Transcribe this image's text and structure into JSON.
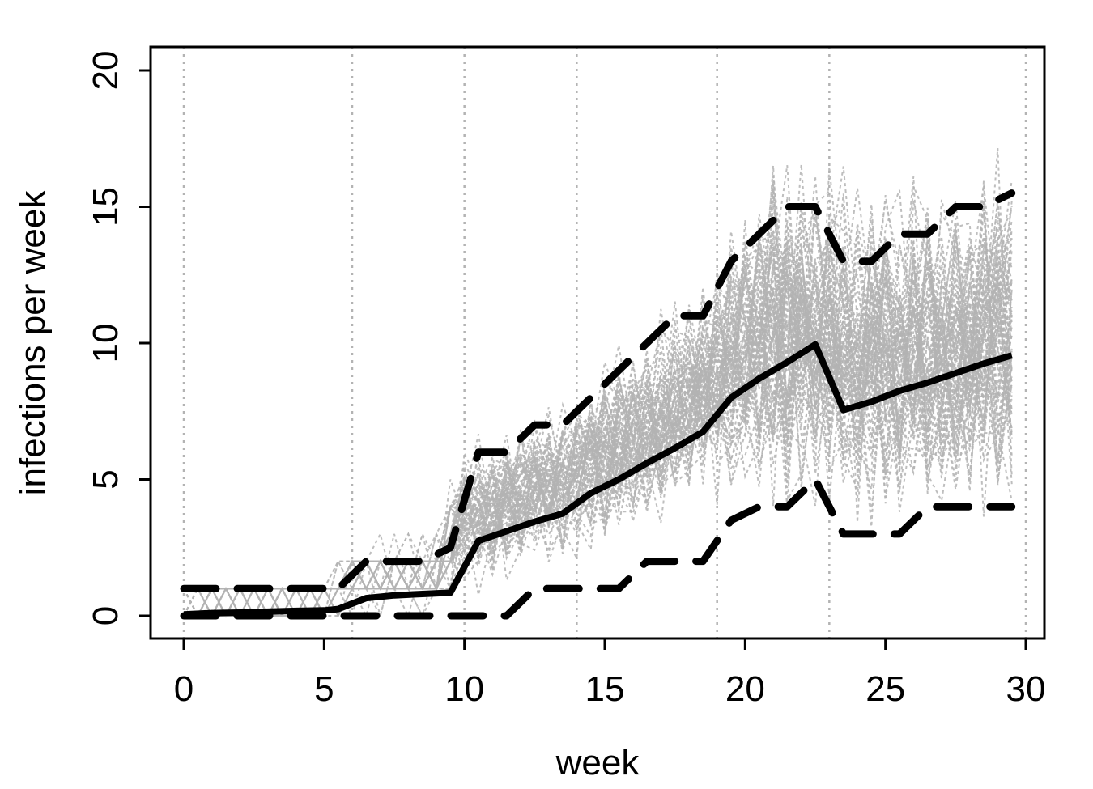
{
  "chart_data": {
    "type": "line",
    "title": "",
    "xlabel": "week",
    "ylabel": "infections per week",
    "xlim": [
      0,
      30
    ],
    "ylim": [
      0,
      20
    ],
    "x_ticks": [
      0,
      5,
      10,
      15,
      20,
      25,
      30
    ],
    "y_ticks": [
      0,
      5,
      10,
      15,
      20
    ],
    "x_tick_labels": [
      "0",
      "5",
      "10",
      "15",
      "20",
      "25",
      "30"
    ],
    "y_tick_labels": [
      "0",
      "5",
      "10",
      "15",
      "20"
    ],
    "grid": "vertical dotted lines",
    "vertical_reference_lines": [
      0,
      6,
      10,
      14,
      19,
      23,
      30
    ],
    "colors": {
      "simulations": "#b3b3b3",
      "summary": "#000000",
      "reference_lines": "#b3b3b3"
    },
    "series": [
      {
        "style": "solid-thick",
        "x": [
          0,
          1,
          2,
          3,
          4,
          5,
          5.5,
          6.5,
          7.5,
          8.5,
          9.5,
          10.5,
          11.5,
          12.5,
          13.5,
          14.5,
          15.5,
          16.5,
          17.5,
          18.5,
          19.5,
          20.5,
          21.5,
          22.5,
          23.5,
          24.5,
          25.5,
          26.5,
          27.5,
          28.5,
          29.5
        ],
        "y": [
          0.05,
          0.1,
          0.12,
          0.15,
          0.18,
          0.2,
          0.25,
          0.65,
          0.75,
          0.8,
          0.85,
          2.75,
          3.1,
          3.45,
          3.75,
          4.5,
          5.0,
          5.6,
          6.15,
          6.75,
          8.0,
          8.7,
          9.3,
          9.95,
          7.55,
          7.85,
          8.25,
          8.55,
          8.9,
          9.25,
          9.55
        ]
      },
      {
        "style": "dashed-thick",
        "x": [
          0,
          5.5,
          6.5,
          7.5,
          8.5,
          9.5,
          10.5,
          11.5,
          12.5,
          13.5,
          14.5,
          15.5,
          16.5,
          17.5,
          18.5,
          19.5,
          20.5,
          21.5,
          22.5,
          23.5,
          24.5,
          25.5,
          26.5,
          27.5,
          28.5,
          29.5
        ],
        "y": [
          1,
          1,
          2,
          2,
          2,
          2.5,
          6,
          6,
          7,
          7,
          8,
          9,
          10,
          11,
          11,
          13,
          14,
          15,
          15,
          13,
          13,
          14,
          14,
          15,
          15,
          15.5
        ]
      },
      {
        "style": "dashed-thick",
        "x": [
          0,
          11.5,
          12.5,
          13.5,
          14.5,
          15.5,
          16.5,
          17.5,
          18.5,
          19.5,
          20.5,
          21.5,
          22.5,
          23.5,
          24.5,
          25.5,
          26.5,
          27.5,
          28.5,
          29.5
        ],
        "y": [
          0,
          0,
          1,
          1,
          1,
          1,
          2,
          2,
          2,
          3.5,
          4,
          4,
          5,
          3,
          3,
          3,
          4,
          4,
          4,
          4
        ]
      }
    ],
    "simulation_envelope": {
      "style": "dotted-gray",
      "x": [
        0,
        1,
        2,
        3,
        4,
        5,
        6,
        7,
        8,
        9,
        10,
        11,
        12,
        13,
        14,
        15,
        16,
        17,
        18,
        19,
        20,
        21,
        22,
        23,
        24,
        25,
        26,
        27,
        28,
        29,
        29.5
      ],
      "low": [
        0,
        0,
        0,
        0,
        0,
        0,
        0,
        0,
        0,
        0,
        0.5,
        0.7,
        1,
        1.3,
        1.5,
        1.8,
        2.0,
        2.5,
        2.8,
        3.2,
        3.5,
        2.5,
        2.2,
        2.0,
        2.0,
        2.3,
        2.5,
        2.5,
        2.5,
        2.2,
        2.0
      ],
      "high": [
        1,
        1,
        1.2,
        1,
        1.2,
        1.5,
        2.5,
        3,
        3,
        3,
        7,
        7,
        8,
        8,
        9,
        10,
        11,
        12,
        13,
        14,
        16,
        18,
        19,
        18,
        17,
        17,
        17,
        17,
        18,
        18,
        19
      ]
    }
  }
}
